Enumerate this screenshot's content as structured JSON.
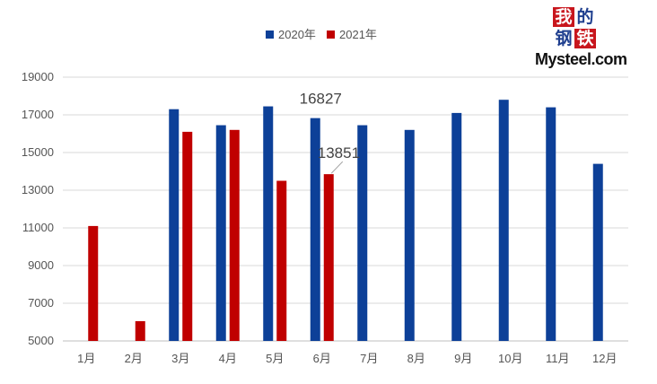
{
  "logo": {
    "chars": [
      "我",
      "的",
      "钢",
      "铁"
    ],
    "wordmark": "Mysteel.com",
    "colors": {
      "red": "#c8161d",
      "blue": "#1f3f8f"
    }
  },
  "chart_data": {
    "type": "bar",
    "title": "",
    "xlabel": "",
    "ylabel": "",
    "categories": [
      "1月",
      "2月",
      "3月",
      "4月",
      "5月",
      "6月",
      "7月",
      "8月",
      "9月",
      "10月",
      "11月",
      "12月"
    ],
    "series": [
      {
        "name": "2020年",
        "color": "#0d4098",
        "values": [
          null,
          null,
          17300,
          16450,
          17450,
          16827,
          16450,
          16200,
          17100,
          17800,
          17400,
          14400
        ]
      },
      {
        "name": "2021年",
        "color": "#c00000",
        "values": [
          11100,
          6050,
          16100,
          16200,
          13500,
          13851,
          null,
          null,
          null,
          null,
          null,
          null
        ]
      }
    ],
    "yticks": [
      5000,
      7000,
      9000,
      11000,
      13000,
      15000,
      17000,
      19000
    ],
    "ylim": [
      5000,
      19000
    ],
    "grid": true,
    "legend": "top-center",
    "annotations": [
      {
        "series": "2020年",
        "category": "6月",
        "text": "16827"
      },
      {
        "series": "2021年",
        "category": "6月",
        "text": "13851"
      }
    ]
  }
}
